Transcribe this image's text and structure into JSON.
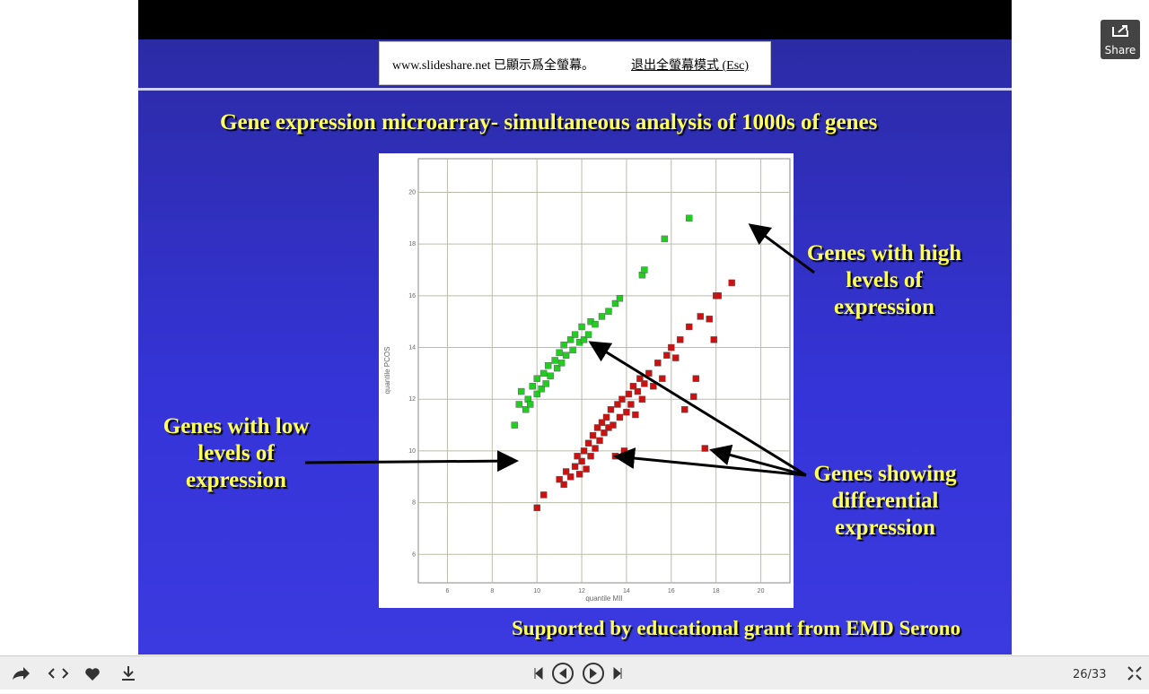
{
  "notification": {
    "text": "www.slideshare.net 已顯示爲全螢幕。",
    "exit": "退出全螢幕模式 (Esc)"
  },
  "share": "Share",
  "slide": {
    "heading": "Gene expression microarray- simultaneous analysis of 1000s of genes",
    "annotations": [
      "Genes with high levels of expression",
      "Genes with low levels of expression",
      "Genes showing differential expression"
    ],
    "footer": "Supported by educational grant from EMD Serono"
  },
  "chart_data": {
    "type": "scatter",
    "x_label": "quantile MII",
    "y_label": "quantile PCOS",
    "xlim": [
      4.7,
      21.3
    ],
    "ylim": [
      4.9,
      21.3
    ],
    "xticks": [
      6,
      8,
      10,
      12,
      14,
      16,
      18,
      20
    ],
    "yticks": [
      6,
      8,
      10,
      12,
      14,
      16,
      18,
      20
    ],
    "grid": true,
    "series": [
      {
        "color": "#22cc22",
        "x": [
          9.0,
          9.2,
          9.3,
          9.5,
          9.6,
          9.7,
          9.8,
          10.0,
          10.0,
          10.2,
          10.3,
          10.4,
          10.5,
          10.6,
          10.8,
          10.9,
          11.0,
          11.1,
          11.2,
          11.3,
          11.5,
          11.6,
          11.7,
          11.9,
          12.0,
          12.1,
          12.3,
          12.4,
          12.6,
          12.9,
          13.2,
          13.5,
          13.7,
          14.7,
          14.8,
          15.7,
          16.8
        ],
        "values": [
          11.0,
          11.8,
          12.3,
          11.6,
          12.0,
          11.8,
          12.5,
          12.2,
          12.8,
          12.4,
          13.0,
          12.6,
          13.3,
          12.9,
          13.5,
          13.2,
          13.8,
          13.4,
          14.1,
          13.7,
          14.3,
          13.9,
          14.5,
          14.2,
          14.8,
          14.3,
          14.5,
          15.0,
          14.9,
          15.2,
          15.4,
          15.7,
          15.9,
          16.8,
          17.0,
          18.2,
          19.0
        ]
      },
      {
        "color": "#cc1111",
        "x": [
          10.0,
          10.3,
          11.0,
          11.2,
          11.3,
          11.5,
          11.7,
          11.8,
          11.9,
          12.0,
          12.1,
          12.2,
          12.3,
          12.4,
          12.5,
          12.6,
          12.7,
          12.8,
          12.9,
          13.0,
          13.1,
          13.2,
          13.3,
          13.4,
          13.5,
          13.6,
          13.7,
          13.8,
          13.9,
          14.0,
          14.1,
          14.2,
          14.3,
          14.4,
          14.5,
          14.6,
          14.7,
          14.8,
          15.0,
          15.2,
          15.4,
          15.6,
          15.8,
          16.0,
          16.2,
          16.4,
          16.6,
          16.8,
          17.0,
          17.1,
          17.3,
          17.5,
          17.7,
          17.9,
          18.0,
          18.1,
          18.7
        ],
        "values": [
          7.8,
          8.3,
          8.9,
          8.7,
          9.2,
          9.0,
          9.4,
          9.8,
          9.1,
          9.6,
          10.0,
          9.3,
          10.3,
          9.8,
          10.6,
          10.1,
          10.9,
          10.4,
          11.1,
          10.7,
          11.3,
          10.9,
          11.6,
          11.0,
          9.8,
          11.8,
          11.3,
          12.0,
          10.0,
          11.5,
          12.2,
          11.8,
          12.5,
          11.4,
          12.3,
          12.8,
          12.0,
          12.6,
          13.0,
          12.5,
          13.4,
          12.8,
          13.7,
          14.0,
          13.6,
          14.3,
          11.6,
          14.8,
          12.1,
          12.8,
          15.2,
          10.1,
          15.1,
          14.3,
          16.0,
          16.0,
          16.5
        ]
      }
    ]
  },
  "toolbar": {
    "page": "26/33"
  }
}
